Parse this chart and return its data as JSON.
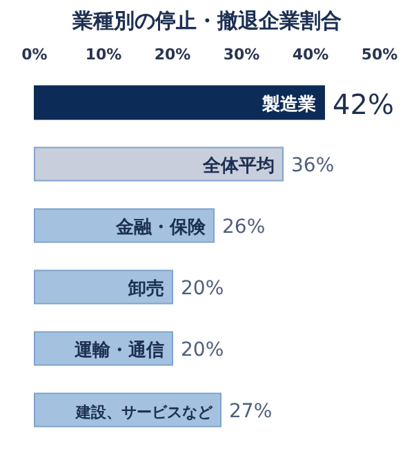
{
  "chart_data": {
    "type": "bar",
    "orientation": "horizontal",
    "title": "業種別の停止・撤退企業割合",
    "categories": [
      "製造業",
      "全体平均",
      "金融・保険",
      "卸売",
      "運輸・通信",
      "建設、サービスなど"
    ],
    "values": [
      42,
      36,
      26,
      20,
      20,
      27
    ],
    "colors": [
      "#0d2b57",
      "#c8cedb",
      "#a4c2e0",
      "#a4c2e0",
      "#a4c2e0",
      "#a4c2e0"
    ],
    "value_labels": [
      "42%",
      "36%",
      "26%",
      "20%",
      "20%",
      "27%"
    ],
    "xlim": [
      0,
      50
    ],
    "xticks": [
      {
        "value": 0,
        "label": "0%"
      },
      {
        "value": 10,
        "label": "10%"
      },
      {
        "value": 20,
        "label": "20%"
      },
      {
        "value": 30,
        "label": "30%"
      },
      {
        "value": 40,
        "label": "40%"
      },
      {
        "value": 50,
        "label": "50%"
      }
    ],
    "grid": false
  }
}
